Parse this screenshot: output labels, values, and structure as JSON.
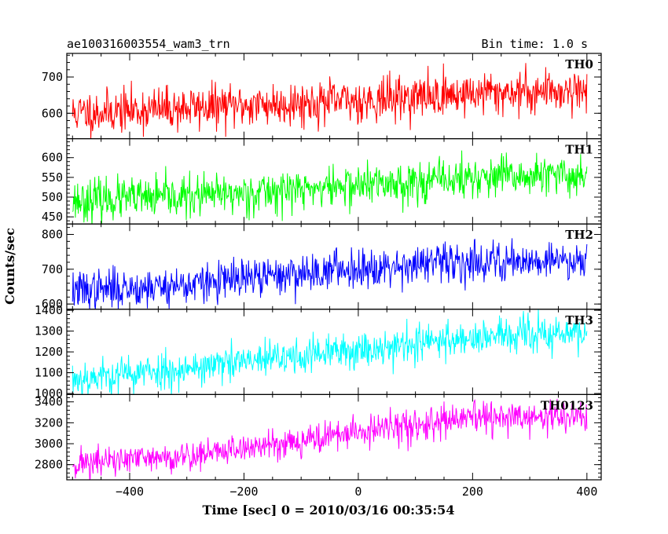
{
  "chart_data": {
    "type": "line",
    "title": "ae100316003554_wam3_trn",
    "bin_label": "Bin time: 1.0 s",
    "xlabel": "Time [sec] 0 = 2010/03/16 00:35:54",
    "ylabel": "Counts/sec",
    "xlim": [
      -510,
      425
    ],
    "x_range": [
      -500,
      400
    ],
    "x_ticks": [
      -400,
      -200,
      0,
      200,
      400
    ],
    "x_tick_labels": [
      "−400",
      "−200",
      "0",
      "200",
      "400"
    ],
    "grid": false,
    "panels": [
      {
        "name": "TH0",
        "color": "#ff0000",
        "ylim": [
          530,
          765
        ],
        "y_ticks": [
          600,
          700
        ],
        "y_tick_labels": [
          "600",
          "700"
        ],
        "trend": [
          [
            -500,
            600
          ],
          [
            -300,
            615
          ],
          [
            0,
            635
          ],
          [
            200,
            655
          ],
          [
            400,
            665
          ]
        ],
        "noise": 30,
        "seed": 11
      },
      {
        "name": "TH1",
        "color": "#00ff00",
        "ylim": [
          432,
          648
        ],
        "y_ticks": [
          450,
          500,
          550,
          600
        ],
        "y_tick_labels": [
          "450",
          "500",
          "550",
          "600"
        ],
        "trend": [
          [
            -500,
            492
          ],
          [
            -300,
            500
          ],
          [
            0,
            530
          ],
          [
            200,
            548
          ],
          [
            400,
            555
          ]
        ],
        "noise": 26,
        "seed": 23
      },
      {
        "name": "TH2",
        "color": "#0000ff",
        "ylim": [
          585,
          830
        ],
        "y_ticks": [
          600,
          700,
          800
        ],
        "y_tick_labels": [
          "600",
          "700",
          "800"
        ],
        "trend": [
          [
            -500,
            638
          ],
          [
            -300,
            655
          ],
          [
            0,
            705
          ],
          [
            200,
            722
          ],
          [
            400,
            728
          ]
        ],
        "noise": 28,
        "seed": 37
      },
      {
        "name": "TH3",
        "color": "#00ffff",
        "ylim": [
          995,
          1405
        ],
        "y_ticks": [
          1000,
          1100,
          1200,
          1300,
          1400
        ],
        "y_tick_labels": [
          "1000",
          "1100",
          "1200",
          "1300",
          "1400"
        ],
        "trend": [
          [
            -500,
            1070
          ],
          [
            -300,
            1120
          ],
          [
            0,
            1210
          ],
          [
            200,
            1270
          ],
          [
            400,
            1290
          ]
        ],
        "noise": 45,
        "seed": 53
      },
      {
        "name": "TH0123",
        "color": "#ff00ff",
        "ylim": [
          2655,
          3470
        ],
        "y_ticks": [
          2800,
          3000,
          3200,
          3400
        ],
        "y_tick_labels": [
          "2800",
          "3000",
          "3200",
          "3400"
        ],
        "trend": [
          [
            -500,
            2810
          ],
          [
            -300,
            2880
          ],
          [
            0,
            3110
          ],
          [
            200,
            3240
          ],
          [
            400,
            3260
          ]
        ],
        "noise": 75,
        "seed": 71
      }
    ]
  }
}
